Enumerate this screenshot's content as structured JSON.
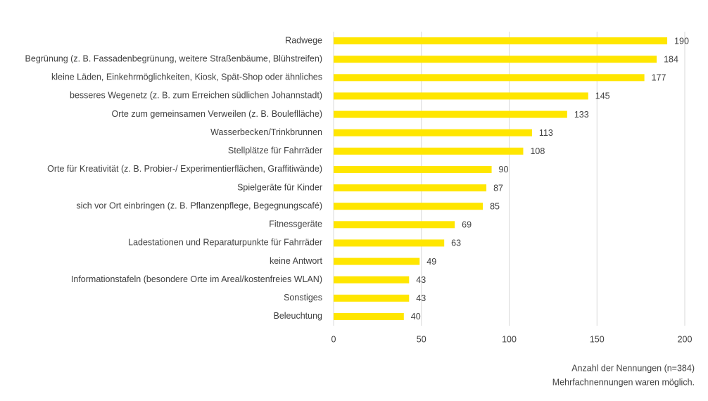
{
  "chart_data": {
    "type": "bar",
    "orientation": "horizontal",
    "categories": [
      "Radwege",
      "Begrünung (z. B. Fassadenbegrünung, weitere Straßenbäume, Blühstreifen)",
      "kleine Läden, Einkehrmöglichkeiten, Kiosk, Spät-Shop oder ähnliches",
      "besseres Wegenetz (z. B. zum Erreichen südlichen Johannstadt)",
      "Orte zum gemeinsamen Verweilen (z. B. Bouleflläche)",
      "Wasserbecken/Trinkbrunnen",
      "Stellplätze für Fahrräder",
      "Orte für Kreativität (z. B. Probier-/ Experimentierflächen, Graffitiwände)",
      "Spielgeräte für Kinder",
      "sich vor Ort einbringen (z. B. Pflanzenpflege, Begegnungscafé)",
      "Fitnessgeräte",
      "Ladestationen und Reparaturpunkte für Fahrräder",
      "keine Antwort",
      "Informationstafeln (besondere Orte im Areal/kostenfreies WLAN)",
      "Sonstiges",
      "Beleuchtung"
    ],
    "values": [
      190,
      184,
      177,
      145,
      133,
      113,
      108,
      90,
      87,
      85,
      69,
      63,
      49,
      43,
      43,
      40
    ],
    "color": "#ffe600",
    "xlim": [
      0,
      200
    ],
    "xticks": [
      0,
      50,
      100,
      150,
      200
    ],
    "grid": true,
    "notes": [
      "Anzahl der Nennungen (n=384)",
      "Mehrfachnennungen waren möglich."
    ]
  }
}
